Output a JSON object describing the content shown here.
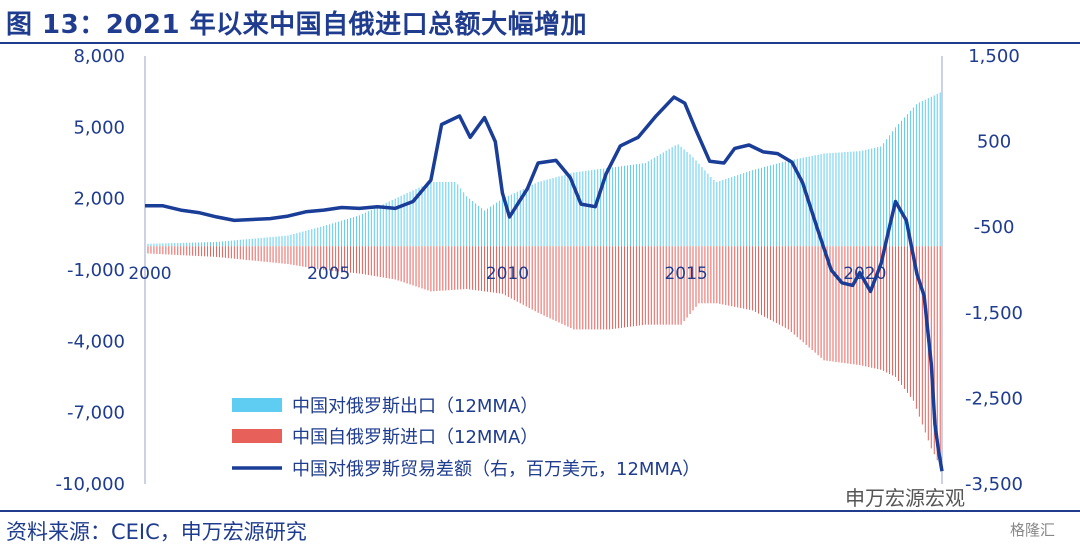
{
  "header": {
    "title": "图 13：2021 年以来中国自俄进口总额大幅增加"
  },
  "footer": {
    "source": "资料来源：CEIC，申万宏源研究"
  },
  "watermark": {
    "text": "申万宏源宏观",
    "corner": "格隆汇"
  },
  "colors": {
    "export": "#5fcdf2",
    "import": "#e8605a",
    "balance": "#1a3d97",
    "text": "#1f3c8f"
  },
  "chart_data": {
    "type": "bar+line",
    "left_axis": {
      "ticks": [
        8000,
        5000,
        2000,
        -1000,
        -4000,
        -7000,
        -10000
      ],
      "tick_labels": [
        "8,000",
        "5,000",
        "2,000",
        "-1,000",
        "-4,000",
        "-7,000",
        "-10,000"
      ],
      "ylim": [
        -10000,
        8000
      ]
    },
    "right_axis": {
      "ticks": [
        1500,
        500,
        -500,
        -1500,
        -2500,
        -3500
      ],
      "tick_labels": [
        "1,500",
        "500",
        "-500",
        "-1,500",
        "-2,500",
        "-3,500"
      ],
      "ylim": [
        -3500,
        1500
      ]
    },
    "x_axis": {
      "ticks": [
        2000,
        2005,
        2010,
        2015,
        2020
      ],
      "tick_labels": [
        "2000",
        "2005",
        "2010",
        "2015",
        "2020"
      ],
      "xlim": [
        2000,
        2022.3
      ]
    },
    "legend": {
      "placement": "bottom-left",
      "entries": [
        "中国对俄罗斯出口（12MMA）",
        "中国自俄罗斯进口（12MMA）",
        "中国对俄罗斯贸易差额（右，百万美元，12MMA）"
      ]
    },
    "series": [
      {
        "name": "中国对俄罗斯出口（12MMA）",
        "axis": "left",
        "kind": "bar",
        "points": [
          [
            2000,
            100
          ],
          [
            2002,
            180
          ],
          [
            2004,
            450
          ],
          [
            2005,
            850
          ],
          [
            2006,
            1300
          ],
          [
            2007,
            2000
          ],
          [
            2008,
            2700
          ],
          [
            2008.7,
            2700
          ],
          [
            2009,
            2100
          ],
          [
            2009.5,
            1500
          ],
          [
            2010,
            2000
          ],
          [
            2011,
            2700
          ],
          [
            2012,
            3100
          ],
          [
            2013,
            3300
          ],
          [
            2014,
            3500
          ],
          [
            2014.9,
            4300
          ],
          [
            2015.3,
            3800
          ],
          [
            2015.9,
            2800
          ],
          [
            2016,
            2700
          ],
          [
            2017,
            3200
          ],
          [
            2018,
            3600
          ],
          [
            2019,
            3900
          ],
          [
            2020,
            4000
          ],
          [
            2020.6,
            4200
          ],
          [
            2021,
            5000
          ],
          [
            2021.6,
            6000
          ],
          [
            2022.3,
            6500
          ]
        ]
      },
      {
        "name": "中国自俄罗斯进口（12MMA）",
        "axis": "left",
        "kind": "bar",
        "points": [
          [
            2000,
            -300
          ],
          [
            2002,
            -450
          ],
          [
            2004,
            -750
          ],
          [
            2005,
            -1000
          ],
          [
            2006,
            -1150
          ],
          [
            2007,
            -1400
          ],
          [
            2008,
            -1900
          ],
          [
            2009,
            -1800
          ],
          [
            2010,
            -2000
          ],
          [
            2011,
            -2800
          ],
          [
            2012,
            -3500
          ],
          [
            2013,
            -3500
          ],
          [
            2014,
            -3300
          ],
          [
            2015,
            -3300
          ],
          [
            2015.5,
            -2400
          ],
          [
            2016,
            -2400
          ],
          [
            2017,
            -2700
          ],
          [
            2018,
            -3500
          ],
          [
            2019,
            -4800
          ],
          [
            2020,
            -5000
          ],
          [
            2020.6,
            -5200
          ],
          [
            2021,
            -5500
          ],
          [
            2021.5,
            -6500
          ],
          [
            2022,
            -8500
          ],
          [
            2022.3,
            -9400
          ]
        ]
      },
      {
        "name": "中国对俄罗斯贸易差额（右，百万美元，12MMA）",
        "axis": "right",
        "kind": "line",
        "points": [
          [
            2000,
            -250
          ],
          [
            2000.5,
            -250
          ],
          [
            2001,
            -300
          ],
          [
            2001.5,
            -330
          ],
          [
            2002,
            -380
          ],
          [
            2002.5,
            -420
          ],
          [
            2003,
            -410
          ],
          [
            2003.5,
            -400
          ],
          [
            2004,
            -370
          ],
          [
            2004.5,
            -320
          ],
          [
            2005,
            -300
          ],
          [
            2005.5,
            -270
          ],
          [
            2006,
            -280
          ],
          [
            2006.5,
            -260
          ],
          [
            2007,
            -280
          ],
          [
            2007.5,
            -200
          ],
          [
            2008,
            50
          ],
          [
            2008.3,
            700
          ],
          [
            2008.8,
            800
          ],
          [
            2009.1,
            550
          ],
          [
            2009.5,
            780
          ],
          [
            2009.8,
            500
          ],
          [
            2010,
            -100
          ],
          [
            2010.2,
            -380
          ],
          [
            2010.7,
            -50
          ],
          [
            2011,
            250
          ],
          [
            2011.5,
            280
          ],
          [
            2011.9,
            80
          ],
          [
            2012.2,
            -230
          ],
          [
            2012.6,
            -260
          ],
          [
            2012.9,
            120
          ],
          [
            2013.3,
            450
          ],
          [
            2013.8,
            550
          ],
          [
            2014.3,
            800
          ],
          [
            2014.8,
            1020
          ],
          [
            2015.1,
            950
          ],
          [
            2015.4,
            650
          ],
          [
            2015.8,
            270
          ],
          [
            2016.2,
            250
          ],
          [
            2016.5,
            420
          ],
          [
            2016.9,
            460
          ],
          [
            2017.3,
            380
          ],
          [
            2017.7,
            360
          ],
          [
            2018.1,
            260
          ],
          [
            2018.4,
            20
          ],
          [
            2018.8,
            -500
          ],
          [
            2019.2,
            -1000
          ],
          [
            2019.5,
            -1150
          ],
          [
            2019.8,
            -1180
          ],
          [
            2020,
            -1030
          ],
          [
            2020.3,
            -1250
          ],
          [
            2020.6,
            -920
          ],
          [
            2020.8,
            -550
          ],
          [
            2021,
            -200
          ],
          [
            2021.3,
            -420
          ],
          [
            2021.6,
            -1050
          ],
          [
            2021.8,
            -1300
          ],
          [
            2022.0,
            -2100
          ],
          [
            2022.1,
            -2800
          ],
          [
            2022.2,
            -3100
          ],
          [
            2022.3,
            -3350
          ]
        ]
      }
    ]
  }
}
